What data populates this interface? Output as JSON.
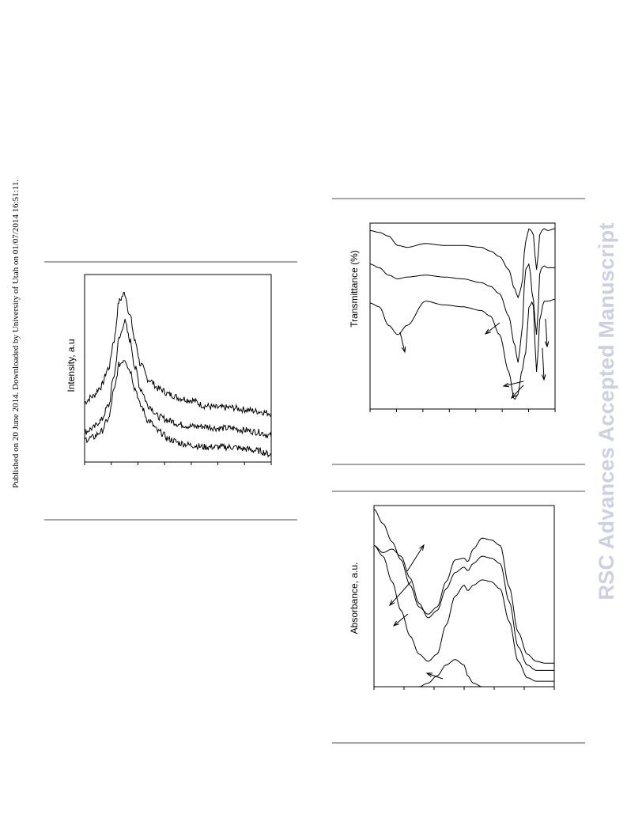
{
  "side_note": "Published on 20 June 2014. Downloaded by University of Utah on 01/07/2014 16:51:11.",
  "watermark": "RSC Advances Accepted Manuscript",
  "chart_data": [
    {
      "id": "xrd",
      "type": "line",
      "ylabel": "Intensity, a.u",
      "xlim": [
        0,
        7
      ],
      "ylim": [
        0,
        10
      ],
      "grid": false,
      "x": [
        0.0,
        0.3,
        0.6,
        0.9,
        1.1,
        1.3,
        1.5,
        1.7,
        1.9,
        2.1,
        2.4,
        2.8,
        3.2,
        3.6,
        4.0,
        4.5,
        5.0,
        5.5,
        6.0,
        6.5,
        7.0
      ],
      "series": [
        {
          "values": [
            3.2,
            3.5,
            4.0,
            5.0,
            6.5,
            8.6,
            9.0,
            7.8,
            6.4,
            5.2,
            4.4,
            3.9,
            3.6,
            3.4,
            3.3,
            3.0,
            2.9,
            2.9,
            2.8,
            2.7,
            2.6
          ]
        },
        {
          "values": [
            1.6,
            1.8,
            2.2,
            3.0,
            4.6,
            6.6,
            7.5,
            6.5,
            5.0,
            3.9,
            3.0,
            2.4,
            2.2,
            2.0,
            1.9,
            1.9,
            1.8,
            1.8,
            1.7,
            1.6,
            1.4
          ]
        },
        {
          "values": [
            1.2,
            1.3,
            1.6,
            2.3,
            3.8,
            5.2,
            5.5,
            4.9,
            3.9,
            3.0,
            2.2,
            1.6,
            1.2,
            1.0,
            0.9,
            0.8,
            0.8,
            0.8,
            0.7,
            0.6,
            0.4
          ]
        }
      ]
    },
    {
      "id": "ftir",
      "type": "line",
      "ylabel": "Transmittance (%)",
      "xlim": [
        0,
        100
      ],
      "ylim": [
        0,
        100
      ],
      "grid": false,
      "x": [
        0,
        5,
        10,
        15,
        20,
        30,
        40,
        50,
        60,
        65,
        70,
        75,
        78,
        80,
        82,
        84,
        86,
        88,
        90,
        92,
        94,
        96,
        100
      ],
      "series": [
        {
          "values": [
            96,
            95,
            93,
            88,
            87,
            89,
            88,
            88,
            87,
            85,
            82,
            75,
            65,
            60,
            66,
            90,
            97,
            95,
            75,
            95,
            97,
            96,
            97
          ]
        },
        {
          "values": [
            78,
            76,
            72,
            70,
            71,
            72,
            71,
            70,
            68,
            66,
            62,
            50,
            35,
            25,
            40,
            75,
            78,
            60,
            40,
            75,
            77,
            76,
            76
          ]
        },
        {
          "values": [
            57,
            55,
            45,
            40,
            45,
            58,
            56,
            55,
            53,
            50,
            40,
            20,
            5,
            8,
            20,
            30,
            55,
            58,
            20,
            50,
            58,
            58,
            59
          ]
        }
      ]
    },
    {
      "id": "uvvis",
      "type": "line",
      "ylabel": "Absorbance, a.u.",
      "xlim": [
        0,
        100
      ],
      "ylim": [
        0,
        100
      ],
      "grid": false,
      "x": [
        0,
        5,
        10,
        15,
        20,
        25,
        30,
        35,
        40,
        45,
        50,
        52,
        55,
        60,
        65,
        70,
        75,
        80,
        85,
        90,
        95,
        100
      ],
      "series": [
        {
          "values": [
            98,
            90,
            80,
            70,
            56,
            44,
            40,
            44,
            58,
            70,
            71,
            69,
            76,
            82,
            81,
            78,
            55,
            30,
            18,
            14,
            13,
            13
          ]
        },
        {
          "values": [
            78,
            74,
            76,
            72,
            60,
            46,
            38,
            42,
            54,
            63,
            66,
            64,
            68,
            72,
            71,
            68,
            47,
            22,
            12,
            9,
            9,
            9
          ]
        },
        {
          "values": [
            78,
            72,
            58,
            42,
            28,
            18,
            14,
            18,
            34,
            50,
            56,
            53,
            56,
            59,
            58,
            54,
            36,
            14,
            5,
            3,
            3,
            3
          ]
        },
        {
          "values": [
            0,
            0,
            0,
            0,
            0,
            0,
            2,
            6,
            12,
            15,
            12,
            6,
            2,
            0,
            0,
            0,
            0,
            0,
            0,
            0,
            0,
            0
          ]
        }
      ]
    }
  ]
}
